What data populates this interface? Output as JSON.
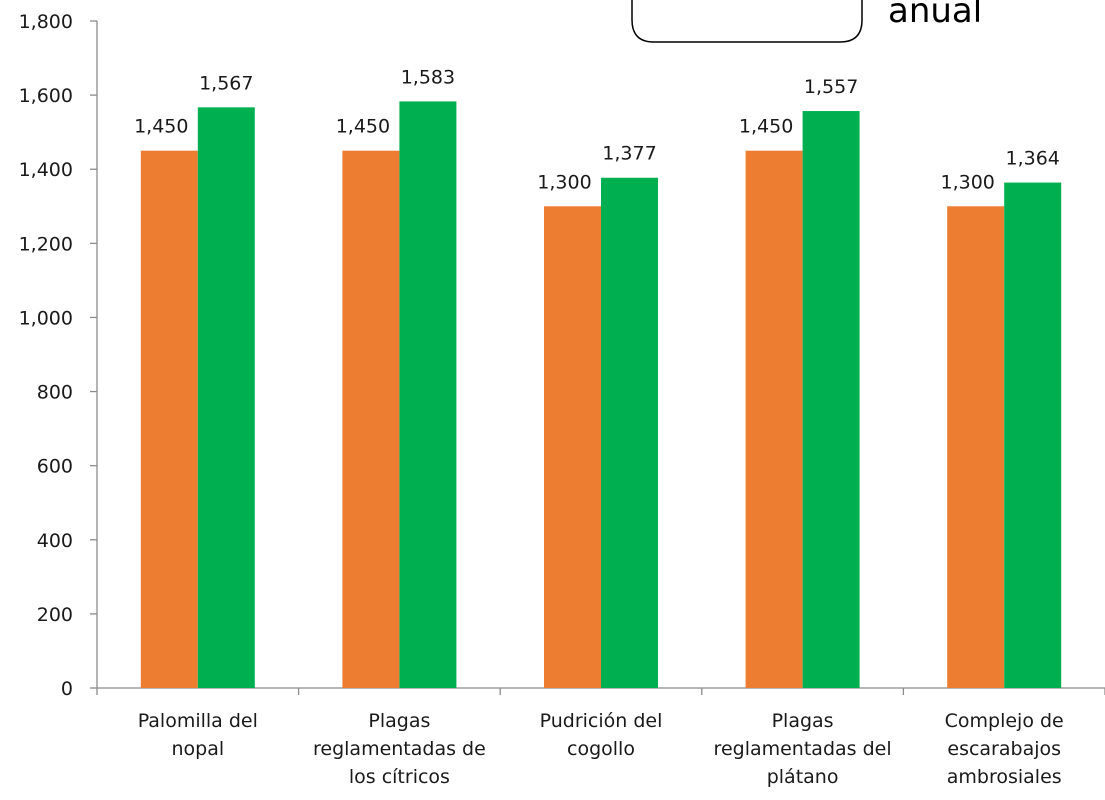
{
  "chart_data": {
    "type": "bar",
    "categories": [
      [
        "Palomilla del",
        "nopal"
      ],
      [
        "Plagas",
        "reglamentadas de",
        "los cítricos"
      ],
      [
        "Pudrición del",
        "cogollo"
      ],
      [
        "Plagas",
        "reglamentadas del",
        "plátano"
      ],
      [
        "Complejo de",
        "escarabajos",
        "ambrosiales"
      ]
    ],
    "series": [
      {
        "values": [
          1450,
          1450,
          1300,
          1450,
          1300
        ],
        "color": "#ED7D31"
      },
      {
        "values": [
          1567,
          1583,
          1377,
          1557,
          1364
        ],
        "color": "#00B050"
      }
    ],
    "ylim": [
      0,
      1800
    ],
    "yticks": [
      0,
      200,
      400,
      600,
      800,
      1000,
      1200,
      1400,
      1600,
      1800
    ],
    "ytick_labels": [
      "0",
      "200",
      "400",
      "600",
      "800",
      "1,000",
      "1,200",
      "1,400",
      "1,600",
      "1,800"
    ],
    "data_labels": [
      [
        "1,450",
        "1,450",
        "1,300",
        "1,450",
        "1,300"
      ],
      [
        "1,567",
        "1,583",
        "1,377",
        "1,557",
        "1,364"
      ]
    ],
    "grid": false,
    "callout_text": "anual"
  }
}
